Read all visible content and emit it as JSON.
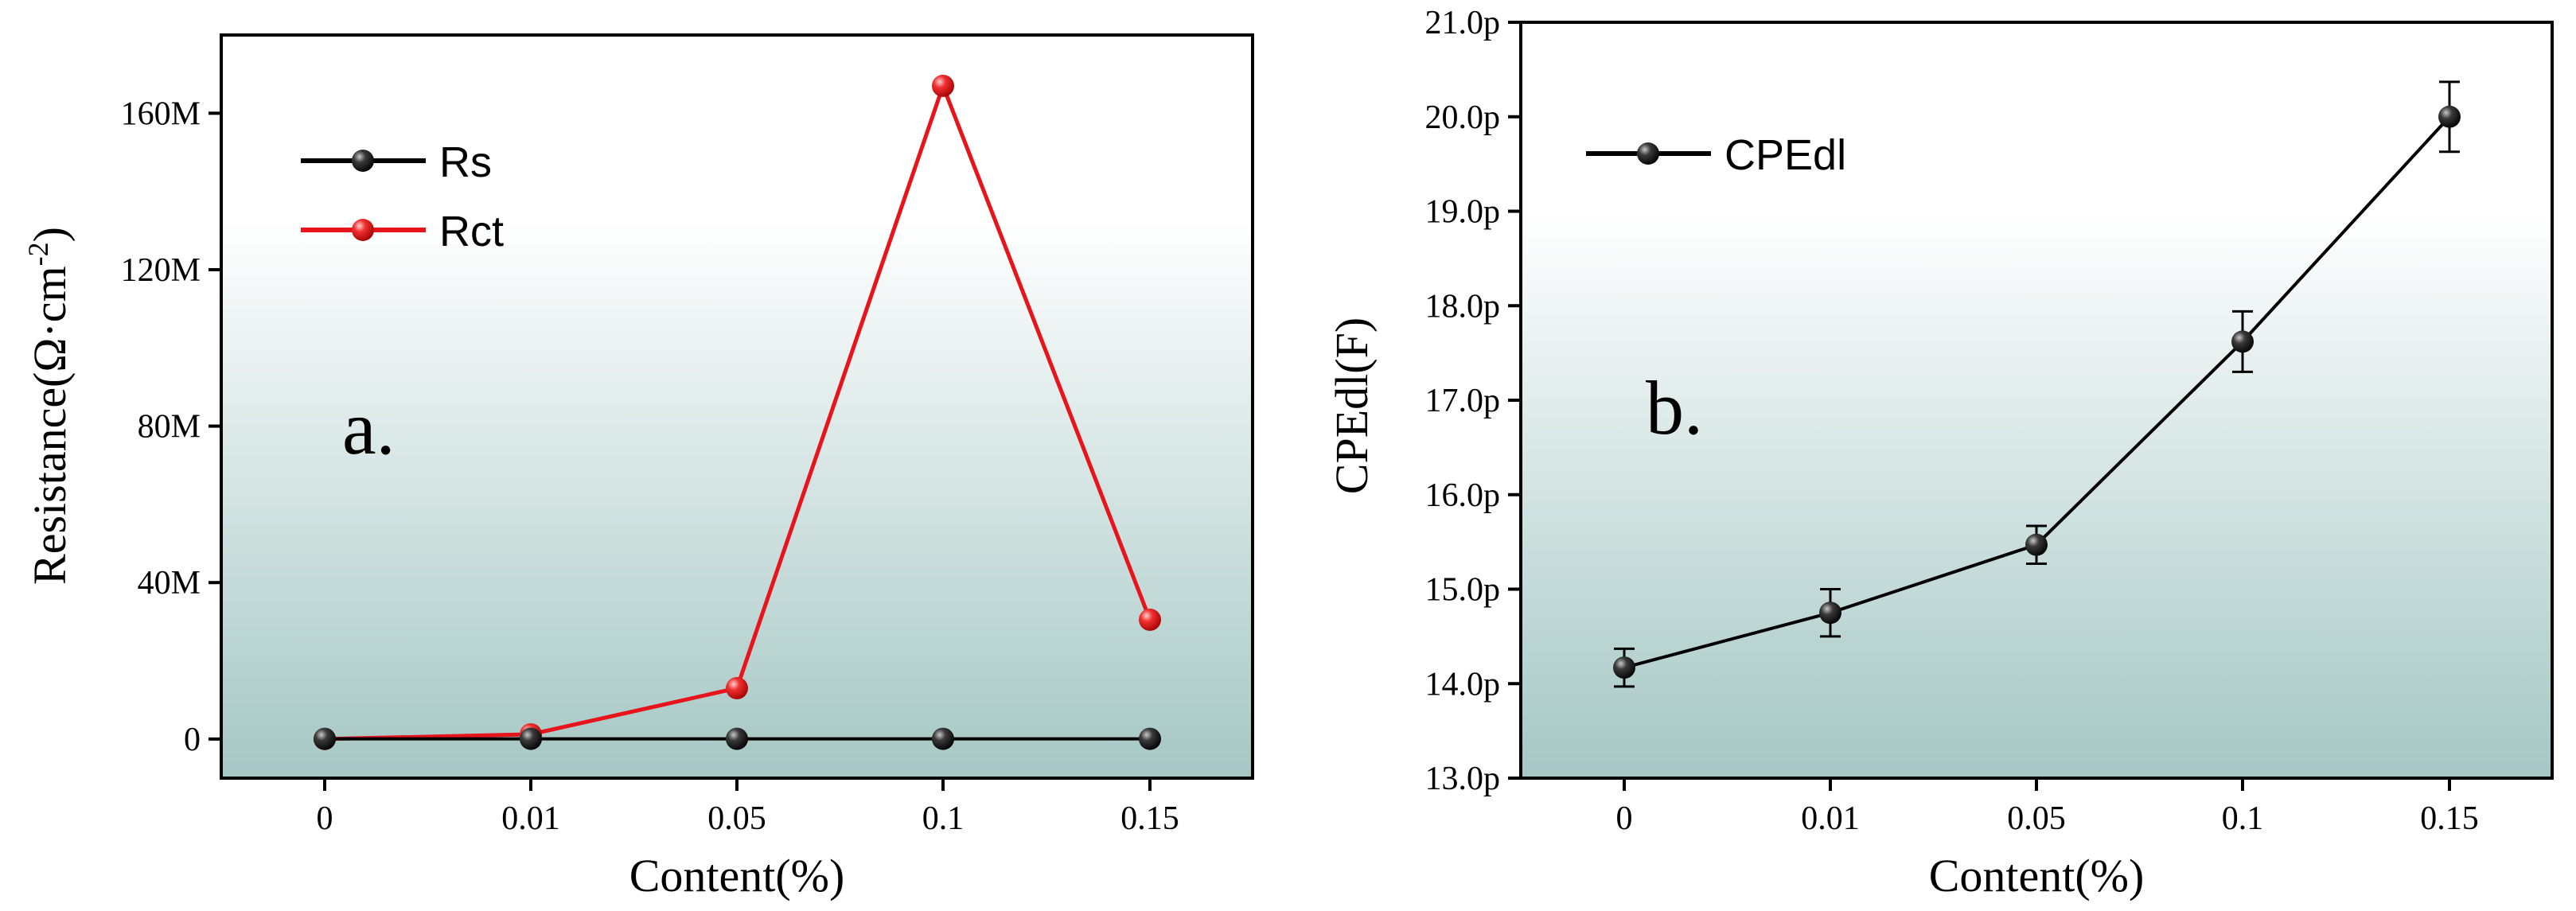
{
  "chart_data": [
    {
      "type": "line",
      "panel_label": "a.",
      "categories": [
        "0",
        "0.01",
        "0.05",
        "0.1",
        "0.15"
      ],
      "series": [
        {
          "name": "Rs",
          "color": "#000000",
          "values": [
            0.05,
            0.05,
            0.05,
            0.05,
            0.05
          ]
        },
        {
          "name": "Rct",
          "color": "#e8141c",
          "values": [
            0,
            1.2,
            13,
            167,
            30.5
          ]
        }
      ],
      "xlabel": "Content(%)",
      "ylabel": {
        "base": "Resistance(Ω·cm",
        "sup": "-2",
        "close": ")"
      },
      "ylim": [
        -10,
        180
      ],
      "yticks": [
        0,
        40,
        80,
        120,
        160
      ],
      "ytick_labels": [
        "0",
        "40M",
        "80M",
        "120M",
        "160M"
      ],
      "legend_position": "top-left",
      "grid": false
    },
    {
      "type": "line",
      "panel_label": "b.",
      "categories": [
        "0",
        "0.01",
        "0.05",
        "0.1",
        "0.15"
      ],
      "series": [
        {
          "name": "CPEdl",
          "color": "#000000",
          "values": [
            14.17,
            14.75,
            15.47,
            17.62,
            20.0
          ],
          "errors": [
            0.2,
            0.25,
            0.2,
            0.32,
            0.37
          ]
        }
      ],
      "xlabel": "Content(%)",
      "ylabel": "CPEdl(F)",
      "ylim": [
        13,
        21
      ],
      "yticks": [
        13,
        14,
        15,
        16,
        17,
        18,
        19,
        20,
        21
      ],
      "ytick_labels": [
        "13.0p",
        "14.0p",
        "15.0p",
        "16.0p",
        "17.0p",
        "18.0p",
        "19.0p",
        "20.0p",
        "21.0p"
      ],
      "legend_position": "top-left",
      "grid": false
    }
  ],
  "colors": {
    "bg_top": "#ffffff",
    "bg_bottom": "#a5c7c4",
    "axis": "#000000"
  }
}
